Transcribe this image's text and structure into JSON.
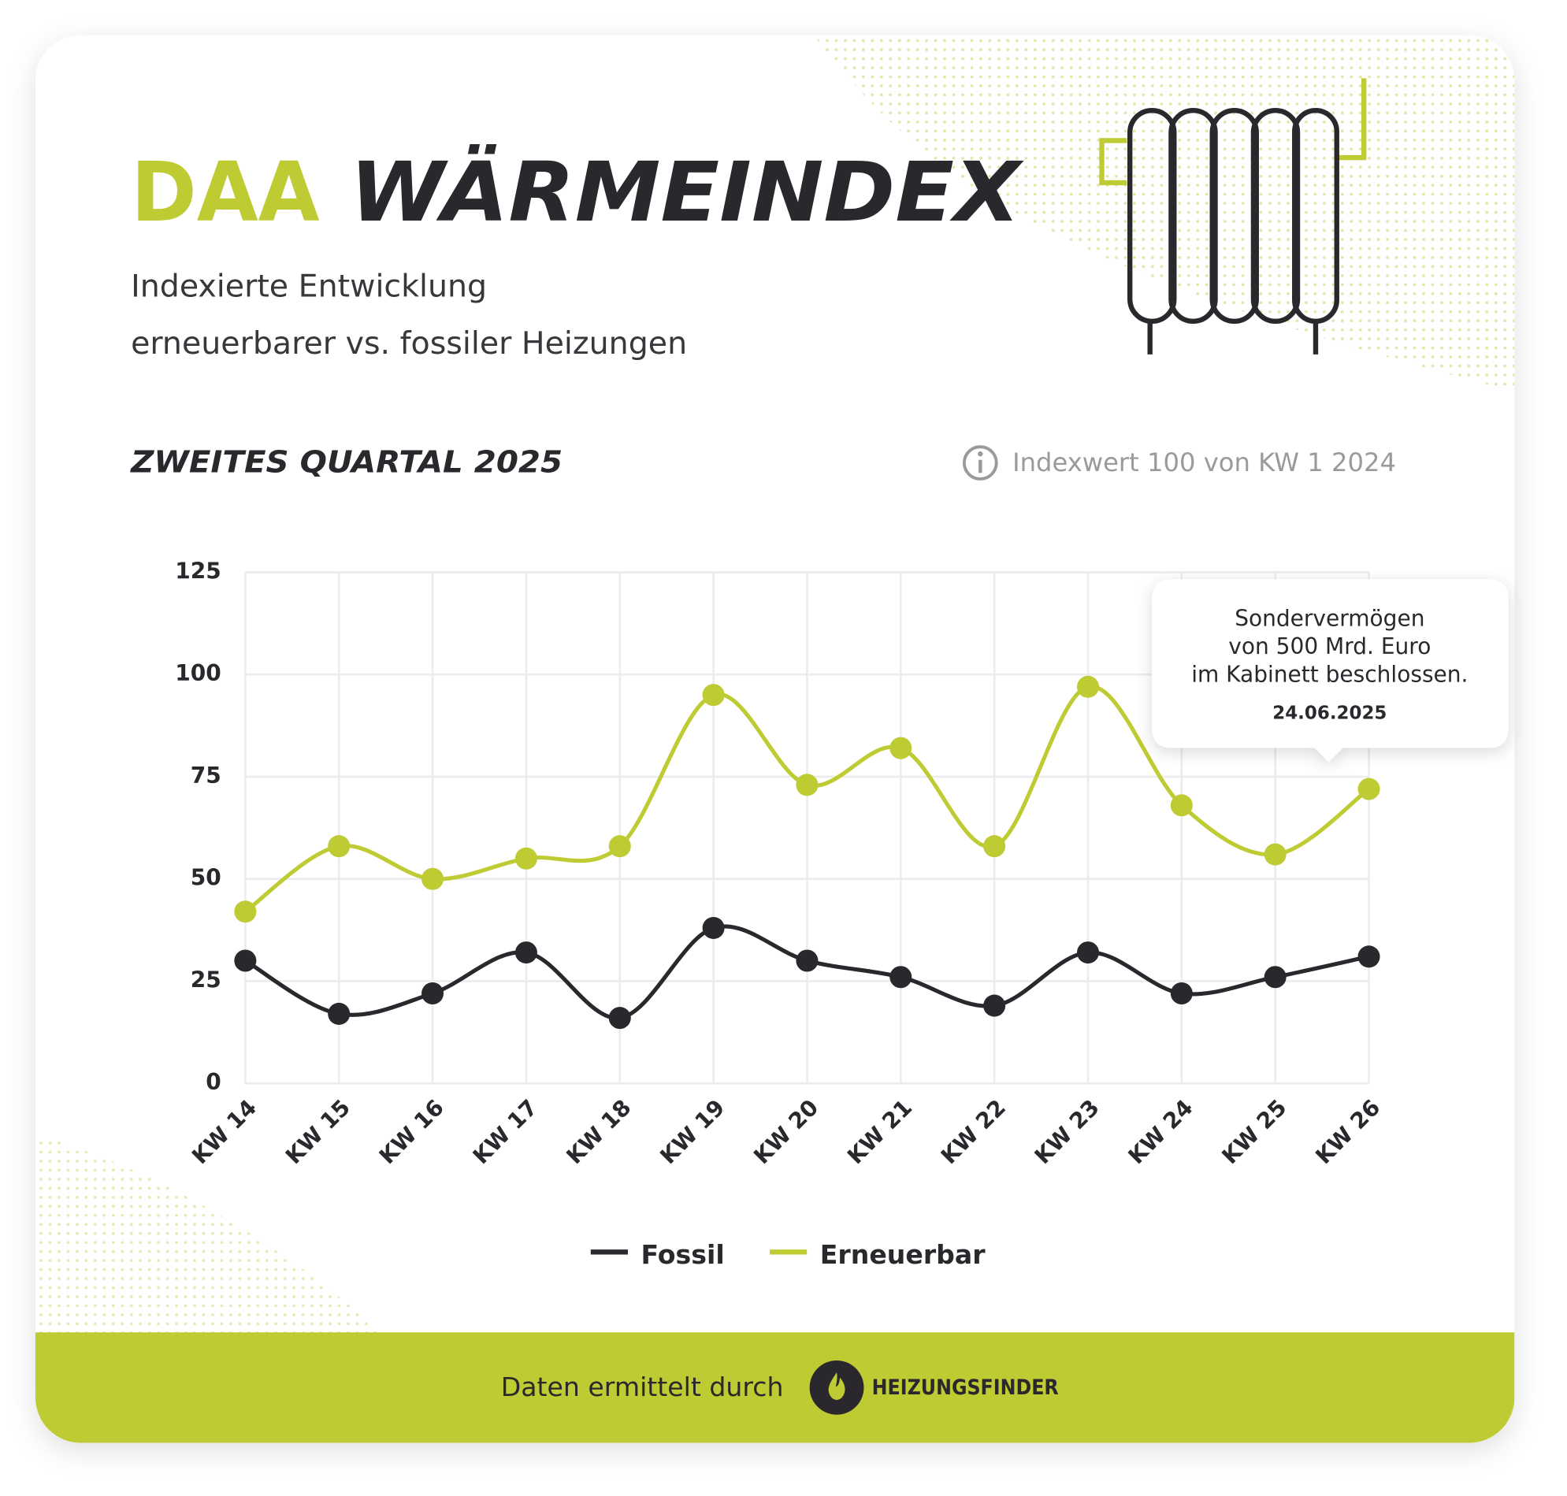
{
  "header": {
    "logo": "DAA",
    "title": "WÄRMEINDEX",
    "subtitle": [
      "Indexierte Entwicklung",
      "erneuerbarer vs. fossiler Heizungen"
    ]
  },
  "chart_data": {
    "type": "line",
    "title": "ZWEITES QUARTAL 2025",
    "note": "Indexwert 100 von KW 1 2024",
    "categories": [
      "KW 14",
      "KW 15",
      "KW 16",
      "KW 17",
      "KW 18",
      "KW 19",
      "KW 20",
      "KW 21",
      "KW 22",
      "KW 23",
      "KW 24",
      "KW 25",
      "KW 26"
    ],
    "series": [
      {
        "name": "Fossil",
        "color": "#2a272d",
        "values": [
          30,
          17,
          22,
          32,
          16,
          38,
          30,
          26,
          19,
          32,
          22,
          26,
          31
        ]
      },
      {
        "name": "Erneuerbar",
        "color": "#bfcb33",
        "values": [
          42,
          58,
          50,
          55,
          58,
          95,
          73,
          82,
          58,
          97,
          68,
          56,
          72
        ]
      }
    ],
    "ylim": [
      0,
      125
    ],
    "yticks": [
      0,
      25,
      50,
      75,
      100,
      125
    ],
    "grid": true,
    "legend": "bottom",
    "annotation": {
      "lines": [
        "Sondervermögen",
        "von 500 Mrd. Euro",
        "im Kabinett beschlossen."
      ],
      "date": "24.06.2025"
    }
  },
  "footer": {
    "text": "Daten ermittelt durch",
    "brand": "HEIZUNGSFINDER"
  }
}
